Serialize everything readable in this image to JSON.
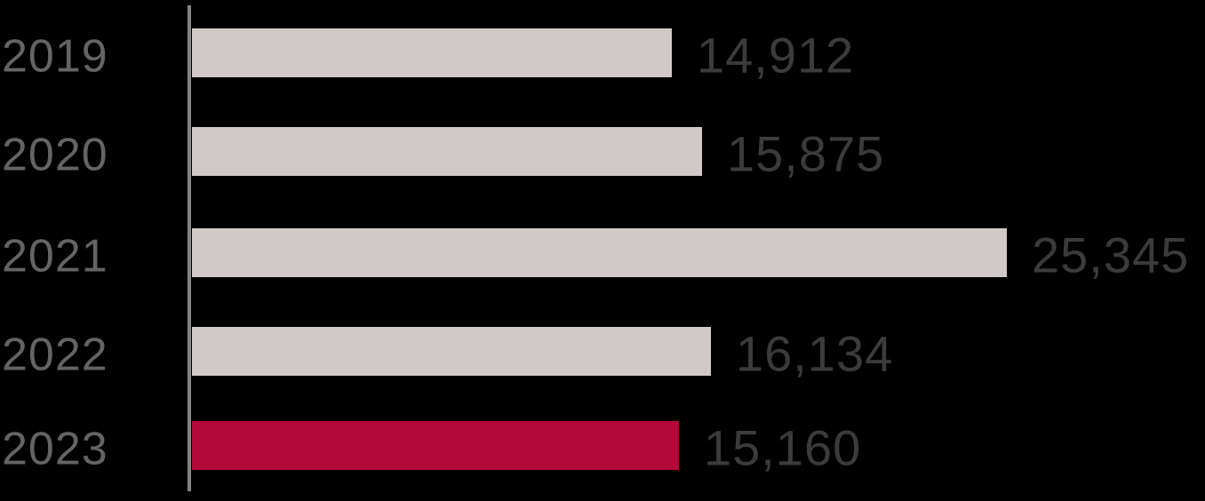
{
  "chart_data": {
    "type": "bar",
    "orientation": "horizontal",
    "title": "",
    "xlabel": "",
    "ylabel": "",
    "categories": [
      "2019",
      "2020",
      "2021",
      "2022",
      "2023"
    ],
    "values": [
      14912,
      15875,
      25345,
      16134,
      15160
    ],
    "value_labels": [
      "14,912",
      "15,875",
      "25,345",
      "16,134",
      "15,160"
    ],
    "highlight_category": "2023",
    "highlight_index": 4,
    "xlim": [
      0,
      25345
    ],
    "grid": false,
    "legend_position": "none"
  },
  "colors": {
    "background": "#000000",
    "bar_default": "#D1C9C7",
    "bar_highlight": "#B30839",
    "axis_line": "#838383",
    "category_label": "#646464",
    "value_label": "#3B3B3B"
  }
}
